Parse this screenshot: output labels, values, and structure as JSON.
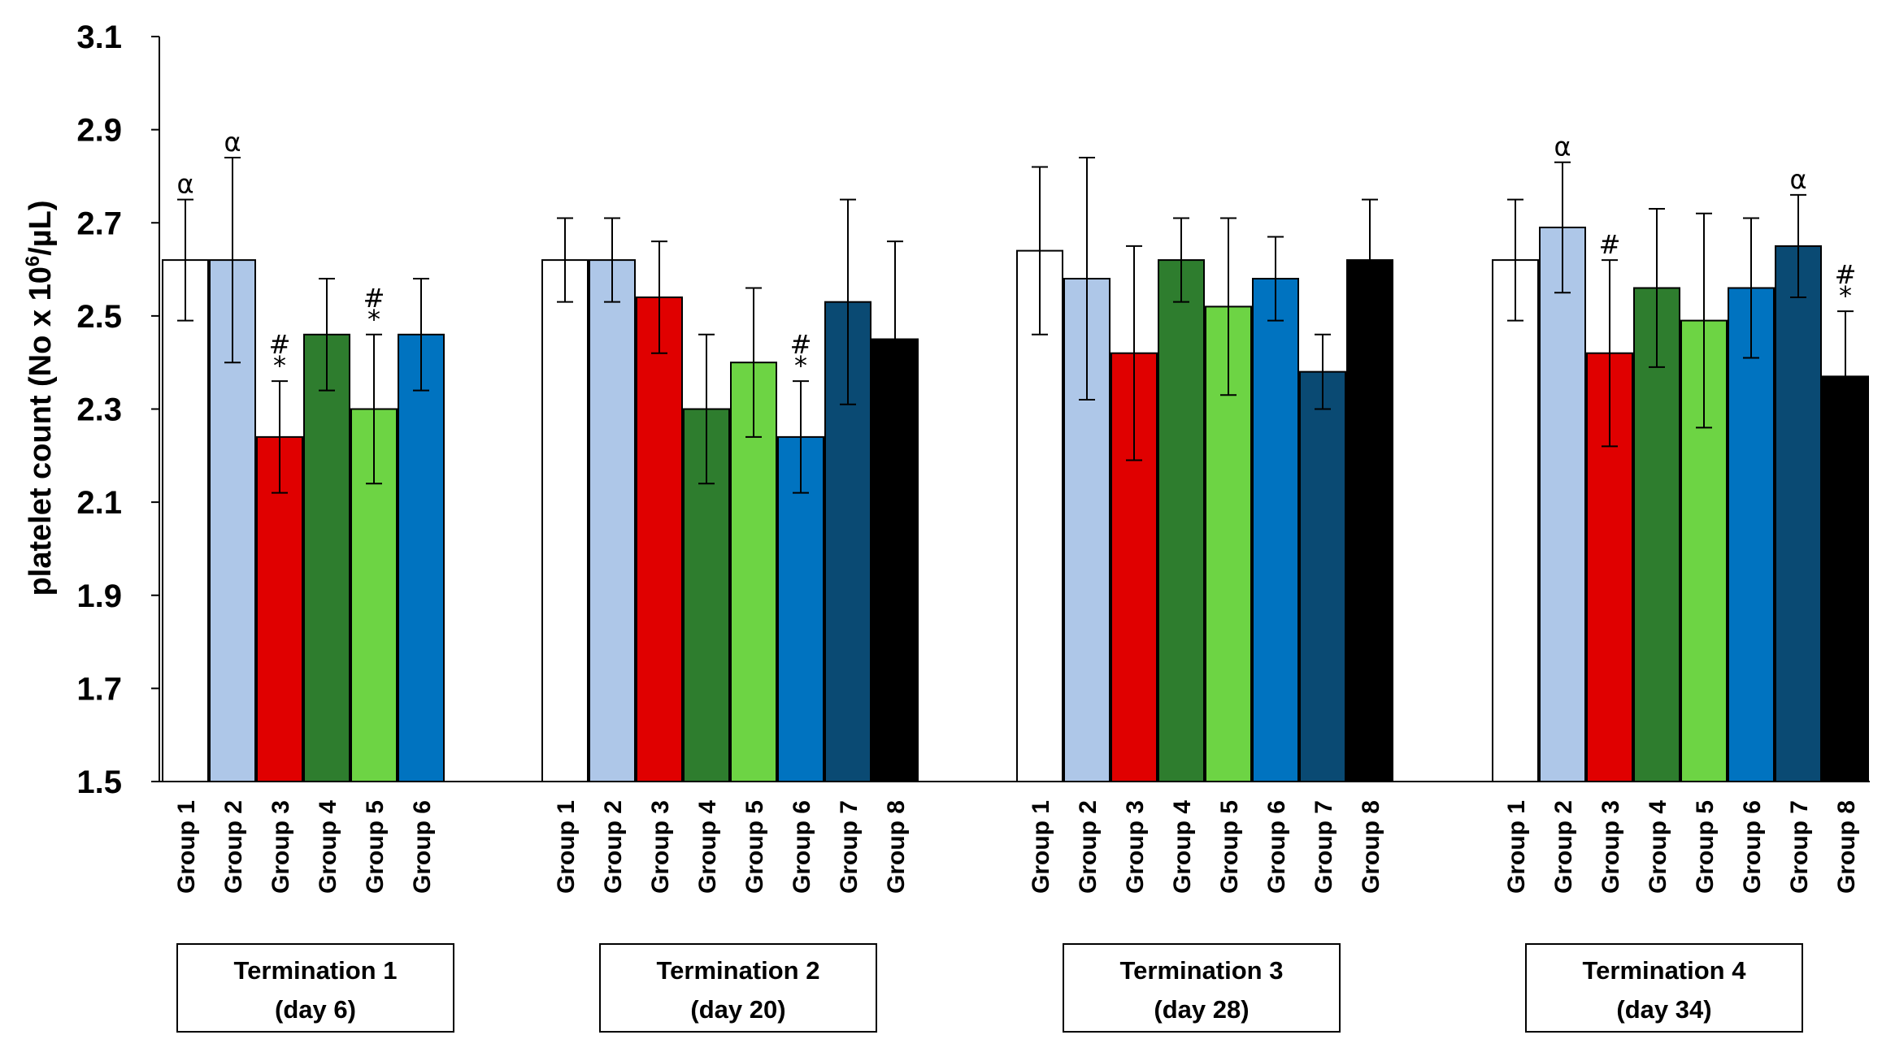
{
  "chart_data": {
    "type": "bar",
    "ylabel": "platelet count (No x 10",
    "ylabel_sup": "6",
    "ylabel_tail": "/µL)",
    "ylim": [
      1.5,
      3.1
    ],
    "yticks": [
      "3.1",
      "2.9",
      "2.7",
      "2.5",
      "2.3",
      "2.1",
      "1.9",
      "1.7",
      "1.5"
    ],
    "grid": false,
    "group_colors": {
      "Group 1": "#ffffff",
      "Group 2": "#aec7e8",
      "Group 3": "#e00000",
      "Group 4": "#2e7d2e",
      "Group 5": "#6dd444",
      "Group 6": "#0073c0",
      "Group 7": "#0a4a73",
      "Group 8": "#000000"
    },
    "terminations": [
      {
        "label_line1": "Termination 1",
        "label_line2": "(day 6)",
        "bars": [
          {
            "group": "Group 1",
            "value": 2.62,
            "err": 0.13,
            "ann": [
              "α"
            ]
          },
          {
            "group": "Group 2",
            "value": 2.62,
            "err": 0.22,
            "ann": [
              "α"
            ]
          },
          {
            "group": "Group 3",
            "value": 2.24,
            "err": 0.12,
            "ann": [
              "#",
              "*"
            ]
          },
          {
            "group": "Group 4",
            "value": 2.46,
            "err": 0.12,
            "ann": []
          },
          {
            "group": "Group 5",
            "value": 2.3,
            "err": 0.16,
            "ann": [
              "#",
              "*"
            ]
          },
          {
            "group": "Group 6",
            "value": 2.46,
            "err": 0.12,
            "ann": []
          }
        ]
      },
      {
        "label_line1": "Termination 2",
        "label_line2": "(day 20)",
        "bars": [
          {
            "group": "Group 1",
            "value": 2.62,
            "err": 0.09,
            "ann": []
          },
          {
            "group": "Group 2",
            "value": 2.62,
            "err": 0.09,
            "ann": []
          },
          {
            "group": "Group 3",
            "value": 2.54,
            "err": 0.12,
            "ann": []
          },
          {
            "group": "Group 4",
            "value": 2.3,
            "err": 0.16,
            "ann": []
          },
          {
            "group": "Group 5",
            "value": 2.4,
            "err": 0.16,
            "ann": []
          },
          {
            "group": "Group 6",
            "value": 2.24,
            "err": 0.12,
            "ann": [
              "#",
              "*"
            ]
          },
          {
            "group": "Group 7",
            "value": 2.53,
            "err": 0.22,
            "ann": []
          },
          {
            "group": "Group 8",
            "value": 2.45,
            "err": 0.21,
            "ann": []
          }
        ]
      },
      {
        "label_line1": "Termination 3",
        "label_line2": "(day 28)",
        "bars": [
          {
            "group": "Group 1",
            "value": 2.64,
            "err": 0.18,
            "ann": []
          },
          {
            "group": "Group 2",
            "value": 2.58,
            "err": 0.26,
            "ann": []
          },
          {
            "group": "Group 3",
            "value": 2.42,
            "err": 0.23,
            "ann": []
          },
          {
            "group": "Group 4",
            "value": 2.62,
            "err": 0.09,
            "ann": []
          },
          {
            "group": "Group 5",
            "value": 2.52,
            "err": 0.19,
            "ann": []
          },
          {
            "group": "Group 6",
            "value": 2.58,
            "err": 0.09,
            "ann": []
          },
          {
            "group": "Group 7",
            "value": 2.38,
            "err": 0.08,
            "ann": []
          },
          {
            "group": "Group 8",
            "value": 2.62,
            "err": 0.13,
            "ann": []
          }
        ]
      },
      {
        "label_line1": "Termination 4",
        "label_line2": "(day 34)",
        "bars": [
          {
            "group": "Group 1",
            "value": 2.62,
            "err": 0.13,
            "ann": []
          },
          {
            "group": "Group 2",
            "value": 2.69,
            "err": 0.14,
            "ann": [
              "α"
            ]
          },
          {
            "group": "Group 3",
            "value": 2.42,
            "err": 0.2,
            "ann": [
              "#"
            ]
          },
          {
            "group": "Group 4",
            "value": 2.56,
            "err": 0.17,
            "ann": []
          },
          {
            "group": "Group 5",
            "value": 2.49,
            "err": 0.23,
            "ann": []
          },
          {
            "group": "Group 6",
            "value": 2.56,
            "err": 0.15,
            "ann": []
          },
          {
            "group": "Group 7",
            "value": 2.65,
            "err": 0.11,
            "ann": [
              "α"
            ]
          },
          {
            "group": "Group 8",
            "value": 2.37,
            "err": 0.14,
            "ann": [
              "#",
              "*"
            ]
          }
        ]
      }
    ]
  }
}
